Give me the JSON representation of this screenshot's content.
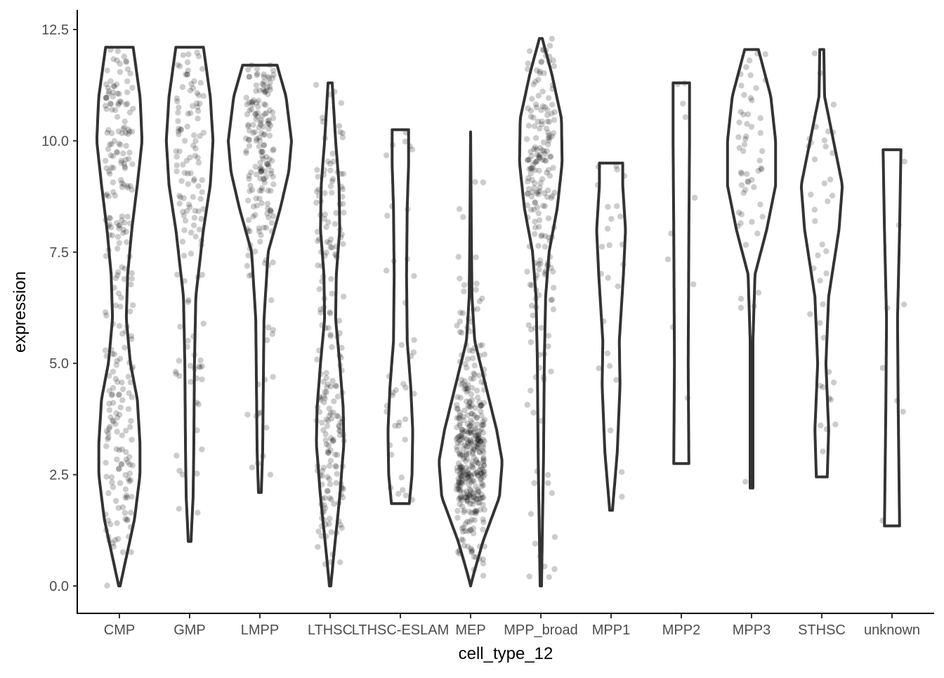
{
  "chart_data": {
    "type": "violin",
    "title": "",
    "xlabel": "cell_type_12",
    "ylabel": "expression",
    "ylim": [
      -0.6,
      12.95
    ],
    "yticks": [
      "0.0",
      "2.5",
      "5.0",
      "7.5",
      "10.0",
      "12.5"
    ],
    "ytick_values": [
      0,
      2.5,
      5,
      7.5,
      10,
      12.5
    ],
    "grid": false,
    "legend": "none",
    "colors": {
      "violin_outline": "#333333",
      "points": "#000000",
      "axis": "#000000",
      "tick_text": "#4d4d4d"
    },
    "categories": [
      "CMP",
      "GMP",
      "LMPP",
      "LTHSC",
      "LTHSC-ESLAM",
      "MEP",
      "MPP_broad",
      "MPP1",
      "MPP2",
      "MPP3",
      "STHSC",
      "unknown"
    ],
    "series": [
      {
        "category": "CMP",
        "min": 0.0,
        "max": 12.1,
        "n_points": 260,
        "profile": [
          [
            0.0,
            0.01
          ],
          [
            0.5,
            0.08
          ],
          [
            1.5,
            0.22
          ],
          [
            2.5,
            0.3
          ],
          [
            3.2,
            0.3
          ],
          [
            4.2,
            0.26
          ],
          [
            5.0,
            0.16
          ],
          [
            6.0,
            0.1
          ],
          [
            7.0,
            0.12
          ],
          [
            8.0,
            0.18
          ],
          [
            9.0,
            0.26
          ],
          [
            10.0,
            0.33
          ],
          [
            11.0,
            0.3
          ],
          [
            12.1,
            0.2
          ]
        ]
      },
      {
        "category": "GMP",
        "min": 1.0,
        "max": 12.1,
        "n_points": 130,
        "profile": [
          [
            1.0,
            0.02
          ],
          [
            2.0,
            0.05
          ],
          [
            3.0,
            0.06
          ],
          [
            5.0,
            0.07
          ],
          [
            6.5,
            0.09
          ],
          [
            8.0,
            0.2
          ],
          [
            9.0,
            0.3
          ],
          [
            10.0,
            0.34
          ],
          [
            11.0,
            0.3
          ],
          [
            12.1,
            0.2
          ]
        ]
      },
      {
        "category": "LMPP",
        "min": 2.1,
        "max": 11.7,
        "n_points": 190,
        "profile": [
          [
            2.1,
            0.02
          ],
          [
            3.0,
            0.04
          ],
          [
            4.5,
            0.05
          ],
          [
            6.0,
            0.06
          ],
          [
            7.5,
            0.12
          ],
          [
            8.5,
            0.3
          ],
          [
            9.3,
            0.42
          ],
          [
            10.0,
            0.46
          ],
          [
            11.0,
            0.38
          ],
          [
            11.7,
            0.25
          ]
        ]
      },
      {
        "category": "LTHSC",
        "min": 0.0,
        "max": 11.3,
        "n_points": 210,
        "profile": [
          [
            0.0,
            0.01
          ],
          [
            0.8,
            0.06
          ],
          [
            2.0,
            0.14
          ],
          [
            3.2,
            0.2
          ],
          [
            4.0,
            0.19
          ],
          [
            5.0,
            0.14
          ],
          [
            6.0,
            0.08
          ],
          [
            7.0,
            0.09
          ],
          [
            8.0,
            0.14
          ],
          [
            9.0,
            0.13
          ],
          [
            10.0,
            0.08
          ],
          [
            11.3,
            0.03
          ]
        ]
      },
      {
        "category": "LTHSC-ESLAM",
        "min": 1.85,
        "max": 10.25,
        "n_points": 40,
        "profile": [
          [
            1.85,
            0.13
          ],
          [
            2.5,
            0.17
          ],
          [
            3.5,
            0.18
          ],
          [
            4.5,
            0.15
          ],
          [
            5.5,
            0.1
          ],
          [
            7.0,
            0.09
          ],
          [
            8.5,
            0.1
          ],
          [
            9.5,
            0.12
          ],
          [
            10.25,
            0.12
          ]
        ]
      },
      {
        "category": "MEP",
        "min": 0.0,
        "max": 10.2,
        "n_points": 380,
        "profile": [
          [
            0.0,
            0.0
          ],
          [
            0.3,
            0.05
          ],
          [
            1.0,
            0.18
          ],
          [
            2.0,
            0.42
          ],
          [
            2.8,
            0.46
          ],
          [
            3.5,
            0.38
          ],
          [
            4.5,
            0.22
          ],
          [
            5.5,
            0.06
          ],
          [
            6.5,
            0.02
          ],
          [
            8.0,
            0.01
          ],
          [
            10.2,
            0.0
          ]
        ]
      },
      {
        "category": "MPP_broad",
        "min": 0.0,
        "max": 12.3,
        "n_points": 210,
        "profile": [
          [
            0.0,
            0.01
          ],
          [
            1.0,
            0.02
          ],
          [
            3.0,
            0.04
          ],
          [
            5.0,
            0.05
          ],
          [
            6.5,
            0.07
          ],
          [
            7.5,
            0.12
          ],
          [
            8.5,
            0.24
          ],
          [
            9.5,
            0.31
          ],
          [
            10.5,
            0.3
          ],
          [
            11.5,
            0.16
          ],
          [
            12.3,
            0.02
          ]
        ]
      },
      {
        "category": "MPP1",
        "min": 1.7,
        "max": 9.5,
        "n_points": 25,
        "profile": [
          [
            1.7,
            0.02
          ],
          [
            3.0,
            0.09
          ],
          [
            4.5,
            0.13
          ],
          [
            5.5,
            0.12
          ],
          [
            7.0,
            0.18
          ],
          [
            8.0,
            0.21
          ],
          [
            9.0,
            0.17
          ],
          [
            9.5,
            0.17
          ]
        ]
      },
      {
        "category": "MPP2",
        "min": 2.75,
        "max": 11.3,
        "n_points": 10,
        "profile": [
          [
            2.75,
            0.11
          ],
          [
            5.0,
            0.1
          ],
          [
            8.0,
            0.11
          ],
          [
            10.0,
            0.12
          ],
          [
            11.3,
            0.12
          ]
        ]
      },
      {
        "category": "MPP3",
        "min": 2.2,
        "max": 12.05,
        "n_points": 55,
        "profile": [
          [
            2.2,
            0.02
          ],
          [
            4.0,
            0.02
          ],
          [
            5.5,
            0.02
          ],
          [
            7.0,
            0.05
          ],
          [
            8.0,
            0.22
          ],
          [
            9.0,
            0.35
          ],
          [
            10.0,
            0.35
          ],
          [
            11.0,
            0.28
          ],
          [
            12.05,
            0.1
          ]
        ]
      },
      {
        "category": "STHSC",
        "min": 2.45,
        "max": 12.05,
        "n_points": 40,
        "profile": [
          [
            2.45,
            0.08
          ],
          [
            3.5,
            0.1
          ],
          [
            5.0,
            0.06
          ],
          [
            6.5,
            0.1
          ],
          [
            8.0,
            0.25
          ],
          [
            9.0,
            0.3
          ],
          [
            10.0,
            0.17
          ],
          [
            11.0,
            0.04
          ],
          [
            12.05,
            0.03
          ]
        ]
      },
      {
        "category": "unknown",
        "min": 1.35,
        "max": 9.8,
        "n_points": 8,
        "profile": [
          [
            1.35,
            0.11
          ],
          [
            4.0,
            0.09
          ],
          [
            6.0,
            0.08
          ],
          [
            8.0,
            0.11
          ],
          [
            9.8,
            0.13
          ]
        ]
      }
    ]
  }
}
